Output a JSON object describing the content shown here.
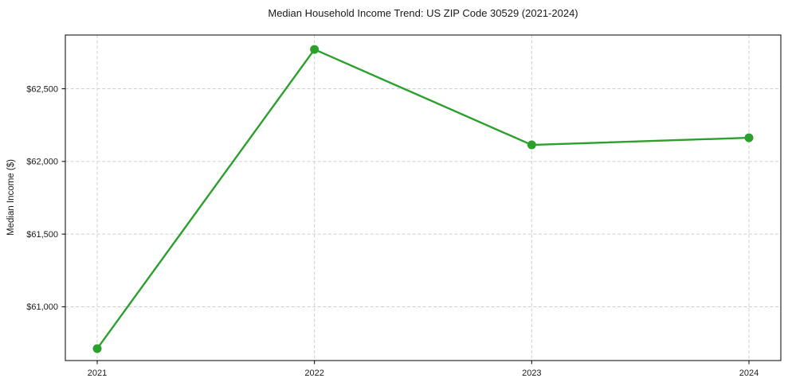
{
  "chart_data": {
    "type": "line",
    "title": "Median Household Income Trend: US ZIP Code 30529 (2021-2024)",
    "xlabel": "",
    "ylabel": "Median Income ($)",
    "x": [
      "2021",
      "2022",
      "2023",
      "2024"
    ],
    "values": [
      60712,
      62771,
      62114,
      62163
    ],
    "yticks": [
      61000,
      61500,
      62000,
      62500
    ],
    "ytick_labels": [
      "$61,000",
      "$61,500",
      "$62,000",
      "$62,500"
    ],
    "ylim": [
      60630,
      62870
    ],
    "grid": "dashed",
    "legend": "none",
    "line_color": "#2ca02c",
    "marker_color": "#2ca02c",
    "grid_color": "#cfcfcf",
    "spine_color": "#000000",
    "text_color": "#1a1a1a"
  }
}
